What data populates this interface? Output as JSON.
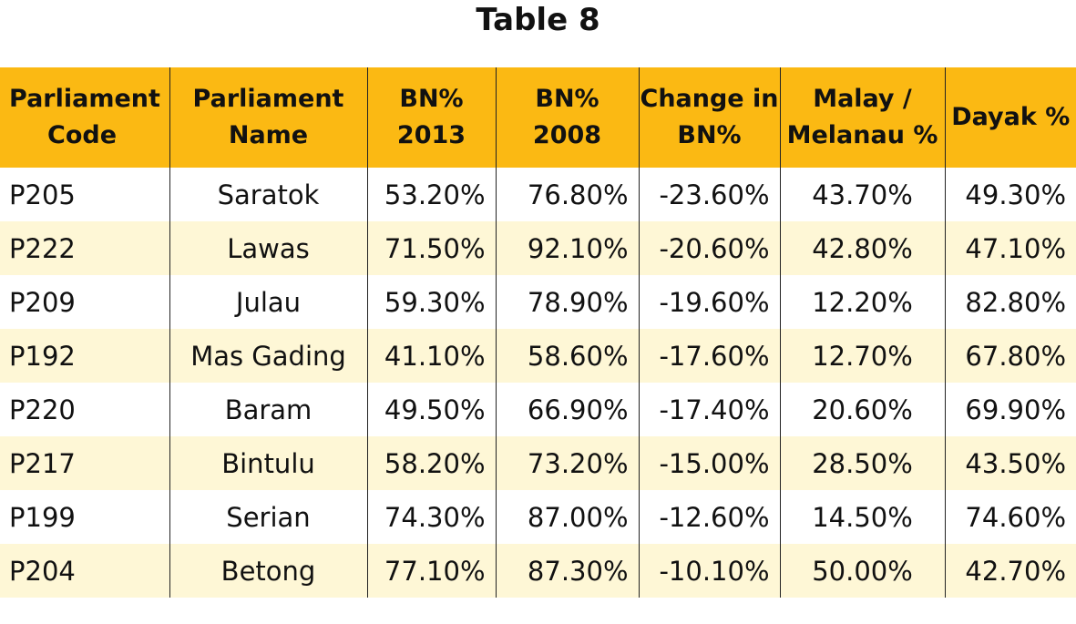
{
  "title": "Table 8",
  "columns": [
    {
      "line1": "Parliament",
      "line2": "Code"
    },
    {
      "line1": "Parliament",
      "line2": "Name"
    },
    {
      "line1": "BN%",
      "line2": "2013"
    },
    {
      "line1": "BN%",
      "line2": "2008"
    },
    {
      "line1": "Change in",
      "line2": "BN%"
    },
    {
      "line1": "Malay /",
      "line2": "Melanau %"
    },
    {
      "line1": "Dayak %",
      "line2": ""
    }
  ],
  "rows": [
    {
      "code": "P205",
      "name": "Saratok",
      "bn2013": "53.20%",
      "bn2008": "76.80%",
      "change": "-23.60%",
      "malay": "43.70%",
      "dayak": "49.30%"
    },
    {
      "code": "P222",
      "name": "Lawas",
      "bn2013": "71.50%",
      "bn2008": "92.10%",
      "change": "-20.60%",
      "malay": "42.80%",
      "dayak": "47.10%"
    },
    {
      "code": "P209",
      "name": "Julau",
      "bn2013": "59.30%",
      "bn2008": "78.90%",
      "change": "-19.60%",
      "malay": "12.20%",
      "dayak": "82.80%"
    },
    {
      "code": "P192",
      "name": "Mas Gading",
      "bn2013": "41.10%",
      "bn2008": "58.60%",
      "change": "-17.60%",
      "malay": "12.70%",
      "dayak": "67.80%"
    },
    {
      "code": "P220",
      "name": "Baram",
      "bn2013": "49.50%",
      "bn2008": "66.90%",
      "change": "-17.40%",
      "malay": "20.60%",
      "dayak": "69.90%"
    },
    {
      "code": "P217",
      "name": "Bintulu",
      "bn2013": "58.20%",
      "bn2008": "73.20%",
      "change": "-15.00%",
      "malay": "28.50%",
      "dayak": "43.50%"
    },
    {
      "code": "P199",
      "name": "Serian",
      "bn2013": "74.30%",
      "bn2008": "87.00%",
      "change": "-12.60%",
      "malay": "14.50%",
      "dayak": "74.60%"
    },
    {
      "code": "P204",
      "name": "Betong",
      "bn2013": "77.10%",
      "bn2008": "87.30%",
      "change": "-10.10%",
      "malay": "50.00%",
      "dayak": "42.70%"
    }
  ],
  "colors": {
    "header_bg": "#fbb913",
    "stripe_bg": "#fef7d6",
    "row_bg": "#ffffff"
  }
}
